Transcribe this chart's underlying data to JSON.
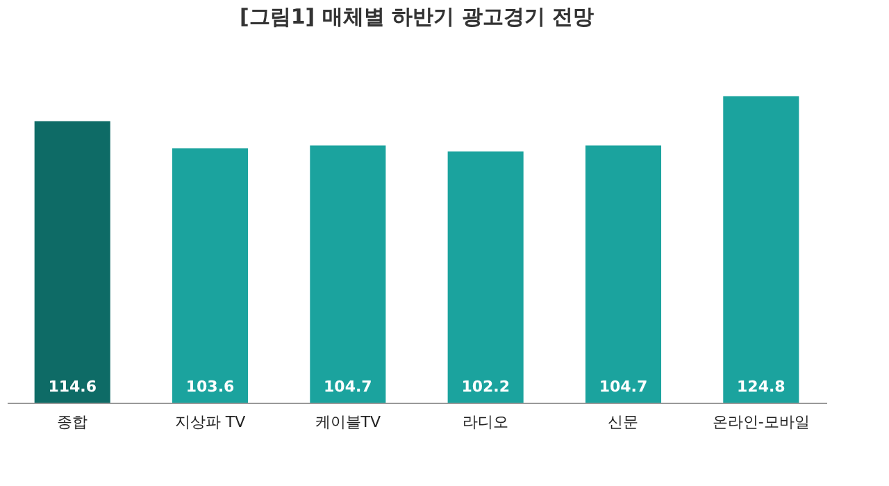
{
  "chart_data": {
    "type": "bar",
    "title": "[그림1] 매체별 하반기 광고경기 전망",
    "categories": [
      "종합",
      "지상파 TV",
      "케이블TV",
      "라디오",
      "신문",
      "온라인-모바일"
    ],
    "values": [
      114.6,
      103.6,
      104.7,
      102.2,
      104.7,
      124.8
    ],
    "colors": [
      "#0e6b66",
      "#1ba39e",
      "#1ba39e",
      "#1ba39e",
      "#1ba39e",
      "#1ba39e"
    ],
    "data_labels": true,
    "grid": false
  }
}
